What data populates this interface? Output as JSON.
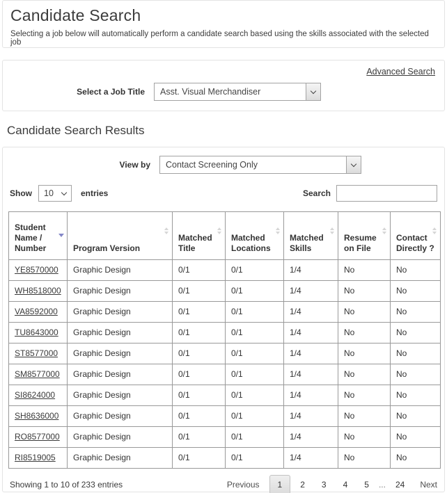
{
  "page": {
    "title": "Candidate Search",
    "subtitle": "Selecting a job below will automatically perform a candidate search based using the skills associated with the selected job"
  },
  "job_panel": {
    "advanced_search_label": "Advanced Search",
    "job_title_label": "Select a Job Title",
    "job_title_value": "Asst. Visual Merchandiser"
  },
  "results": {
    "heading": "Candidate Search Results",
    "view_by_label": "View by",
    "view_by_value": "Contact Screening Only",
    "show_label": "Show",
    "show_value": "10",
    "entries_label": "entries",
    "search_label": "Search",
    "search_value": ""
  },
  "table": {
    "columns": [
      {
        "key": "number",
        "label": "Student Name / Number",
        "sort": "desc"
      },
      {
        "key": "program",
        "label": "Program Version",
        "sort": "both"
      },
      {
        "key": "matched_title",
        "label": "Matched Title",
        "sort": "both"
      },
      {
        "key": "matched_locations",
        "label": "Matched Locations",
        "sort": "both"
      },
      {
        "key": "matched_skills",
        "label": "Matched Skills",
        "sort": "both"
      },
      {
        "key": "resume_on_file",
        "label": "Resume on File",
        "sort": "both"
      },
      {
        "key": "contact_directly",
        "label": "Contact Directly ?",
        "sort": "both"
      }
    ],
    "rows": [
      {
        "number": "YE8570000",
        "program": "Graphic Design",
        "matched_title": "0/1",
        "matched_locations": "0/1",
        "matched_skills": "1/4",
        "resume_on_file": "No",
        "contact_directly": "No"
      },
      {
        "number": "WH8518000",
        "program": "Graphic Design",
        "matched_title": "0/1",
        "matched_locations": "0/1",
        "matched_skills": "1/4",
        "resume_on_file": "No",
        "contact_directly": "No"
      },
      {
        "number": "VA8592000",
        "program": "Graphic Design",
        "matched_title": "0/1",
        "matched_locations": "0/1",
        "matched_skills": "1/4",
        "resume_on_file": "No",
        "contact_directly": "No"
      },
      {
        "number": "TU8643000",
        "program": "Graphic Design",
        "matched_title": "0/1",
        "matched_locations": "0/1",
        "matched_skills": "1/4",
        "resume_on_file": "No",
        "contact_directly": "No"
      },
      {
        "number": "ST8577000",
        "program": "Graphic Design",
        "matched_title": "0/1",
        "matched_locations": "0/1",
        "matched_skills": "1/4",
        "resume_on_file": "No",
        "contact_directly": "No"
      },
      {
        "number": "SM8577000",
        "program": "Graphic Design",
        "matched_title": "0/1",
        "matched_locations": "0/1",
        "matched_skills": "1/4",
        "resume_on_file": "No",
        "contact_directly": "No"
      },
      {
        "number": "SI8624000",
        "program": "Graphic Design",
        "matched_title": "0/1",
        "matched_locations": "0/1",
        "matched_skills": "1/4",
        "resume_on_file": "No",
        "contact_directly": "No"
      },
      {
        "number": "SH8636000",
        "program": "Graphic Design",
        "matched_title": "0/1",
        "matched_locations": "0/1",
        "matched_skills": "1/4",
        "resume_on_file": "No",
        "contact_directly": "No"
      },
      {
        "number": "RO8577000",
        "program": "Graphic Design",
        "matched_title": "0/1",
        "matched_locations": "0/1",
        "matched_skills": "1/4",
        "resume_on_file": "No",
        "contact_directly": "No"
      },
      {
        "number": "RI8519005",
        "program": "Graphic Design",
        "matched_title": "0/1",
        "matched_locations": "0/1",
        "matched_skills": "1/4",
        "resume_on_file": "No",
        "contact_directly": "No"
      }
    ]
  },
  "footer": {
    "showing_text": "Showing 1 to 10 of 233 entries",
    "pagination": {
      "previous_label": "Previous",
      "pages": [
        "1",
        "2",
        "3",
        "4",
        "5"
      ],
      "ellipsis_label": "...",
      "last_page": "24",
      "next_label": "Next",
      "active_page": "1"
    }
  },
  "colors": {
    "sort_active": "#8487c7",
    "sort_inactive": "#d6d6d6",
    "panel_border": "#e3e3e3",
    "table_border": "#999999",
    "text": "#3a3a3a"
  }
}
